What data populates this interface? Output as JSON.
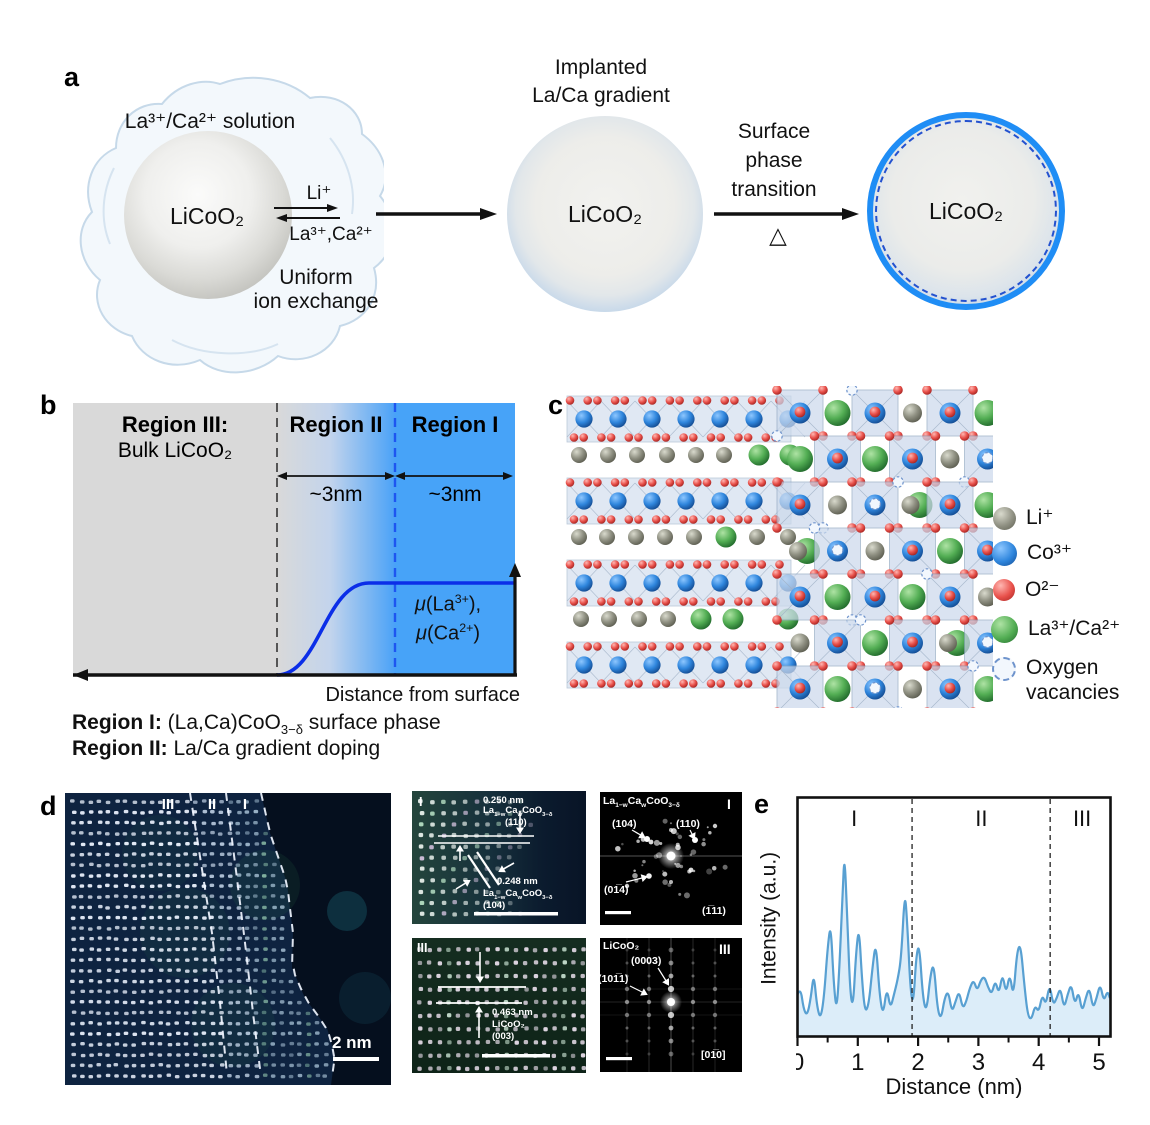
{
  "figure": {
    "panel_labels": {
      "a": "a",
      "b": "b",
      "c": "c",
      "d": "d",
      "e": "e"
    },
    "a": {
      "solution_label": "La³⁺/Ca²⁺ solution",
      "sphere1_label": "LiCoO₂",
      "li_out": "Li⁺",
      "laca_in": "La³⁺,Ca²⁺",
      "exchange_line1": "Uniform",
      "exchange_line2": "ion exchange",
      "implanted_line1": "Implanted",
      "implanted_line2": "La/Ca gradient",
      "sphere2_label": "LiCoO₂",
      "transition_line1": "Surface",
      "transition_line2": "phase",
      "transition_line3": "transition",
      "heat_symbol": "△",
      "sphere3_label": "LiCoO₂"
    },
    "b": {
      "region3_title": "Region III:",
      "region3_sub": "Bulk LiCoO₂",
      "region2_title": "Region II",
      "region1_title": "Region I",
      "scale2": "~3nm",
      "scale1": "~3nm",
      "mu1_parts": [
        [
          "i",
          "μ"
        ],
        [
          "t",
          "(La"
        ],
        [
          "sup",
          "3+"
        ],
        [
          "t",
          "),"
        ]
      ],
      "mu2_parts": [
        [
          "i",
          "μ"
        ],
        [
          "t",
          "(Ca"
        ],
        [
          "sup",
          "2+"
        ],
        [
          "t",
          ")"
        ]
      ],
      "x_axis_label": "Distance from surface",
      "caption1_bold": "Region I:",
      "caption1_parts": [
        [
          "t",
          " (La,Ca)CoO"
        ],
        [
          "sub",
          "3−δ"
        ],
        [
          "t",
          " surface phase"
        ]
      ],
      "caption2_bold": "Region II:",
      "caption2_rest": " La/Ca gradient doping"
    },
    "c": {
      "legend": [
        {
          "key": "li",
          "label": "Li⁺"
        },
        {
          "key": "co",
          "label": "Co³⁺"
        },
        {
          "key": "o",
          "label": "O²⁻"
        },
        {
          "key": "laca",
          "label": "La³⁺/Ca²⁺"
        },
        {
          "key": "vacancy",
          "label_line1": "Oxygen",
          "label_line2": "vacancies"
        }
      ],
      "atom_colors": {
        "li": {
          "light": "#d9dacd",
          "base": "#8f9082",
          "dark": "#5c5d50"
        },
        "co": {
          "light": "#8ec7ff",
          "base": "#2f86dd",
          "dark": "#134a90"
        },
        "o": {
          "light": "#ffb7b2",
          "base": "#e8504a",
          "dark": "#a32320"
        },
        "laca": {
          "light": "#aee3a4",
          "base": "#53ae54",
          "dark": "#20692b"
        },
        "vacancy": {
          "fill": "#f2f7fd",
          "stroke": "#6e93cc"
        },
        "poly": {
          "fill": "#ccd9ec",
          "stroke": "#8fa6c0"
        }
      }
    },
    "d": {
      "region_labels": [
        "III",
        "II",
        "I"
      ],
      "scale_bar": "2 nm",
      "inset1": {
        "label": "I",
        "d1": "0.250 nm",
        "formula_parts": [
          [
            "t",
            "La"
          ],
          [
            "sub",
            "1−w"
          ],
          [
            "t",
            "Ca"
          ],
          [
            "sub",
            "w"
          ],
          [
            "t",
            "CoO"
          ],
          [
            "sub",
            "3−δ"
          ]
        ],
        "plane1": "(110)",
        "d2": "0.248 nm",
        "plane2": "(104)"
      },
      "inset3": {
        "label": "III",
        "d1": "0.463 nm",
        "formula": "LiCoO₂",
        "plane": "(003)"
      },
      "fft1": {
        "formula_parts": [
          [
            "t",
            "La"
          ],
          [
            "sub",
            "1−w"
          ],
          [
            "t",
            "Ca"
          ],
          [
            "sub",
            "w"
          ],
          [
            "t",
            "CoO"
          ],
          [
            "sub",
            "3−δ"
          ]
        ],
        "label": "I",
        "s1": "(104)",
        "s2": "(110)",
        "s3": "(01̅4)",
        "zone": "(1̅11)"
      },
      "fft2": {
        "formula": "LiCoO₂",
        "label": "III",
        "s1": "(0003)",
        "s2": "(101̅1)",
        "zone": "[01̅0]"
      }
    }
  },
  "chart_data": {
    "type": "line",
    "title": "",
    "xlabel": "Distance (nm)",
    "ylabel": "Intensity (a.u.)",
    "xlim": [
      0,
      5.18
    ],
    "x_ticks": [
      0,
      1,
      2,
      3,
      4,
      5
    ],
    "minor_ticks": [
      0.5,
      1.5,
      2.5,
      3.5,
      4.5
    ],
    "grid": false,
    "dividers": [
      1.9,
      4.19
    ],
    "region_labels": [
      {
        "text": "I",
        "x": 0.94
      },
      {
        "text": "II",
        "x": 3.05
      },
      {
        "text": "III",
        "x": 4.72
      }
    ],
    "line_color": "#58a0d2",
    "fill_color": "#dcedf9",
    "points": [
      [
        0.0,
        0.22
      ],
      [
        0.05,
        0.26
      ],
      [
        0.1,
        0.14
      ],
      [
        0.16,
        0.1
      ],
      [
        0.22,
        0.2
      ],
      [
        0.27,
        0.34
      ],
      [
        0.32,
        0.16
      ],
      [
        0.38,
        0.08
      ],
      [
        0.44,
        0.2
      ],
      [
        0.5,
        0.48
      ],
      [
        0.55,
        0.62
      ],
      [
        0.6,
        0.28
      ],
      [
        0.65,
        0.12
      ],
      [
        0.7,
        0.4
      ],
      [
        0.75,
        0.8
      ],
      [
        0.78,
        1.0
      ],
      [
        0.82,
        0.7
      ],
      [
        0.87,
        0.24
      ],
      [
        0.92,
        0.14
      ],
      [
        0.97,
        0.45
      ],
      [
        1.02,
        0.6
      ],
      [
        1.07,
        0.3
      ],
      [
        1.12,
        0.12
      ],
      [
        1.18,
        0.16
      ],
      [
        1.24,
        0.36
      ],
      [
        1.3,
        0.52
      ],
      [
        1.36,
        0.22
      ],
      [
        1.42,
        0.1
      ],
      [
        1.48,
        0.26
      ],
      [
        1.54,
        0.14
      ],
      [
        1.6,
        0.22
      ],
      [
        1.66,
        0.3
      ],
      [
        1.72,
        0.42
      ],
      [
        1.78,
        0.8
      ],
      [
        1.82,
        0.62
      ],
      [
        1.87,
        0.25
      ],
      [
        1.92,
        0.16
      ],
      [
        1.97,
        0.44
      ],
      [
        2.02,
        0.5
      ],
      [
        2.08,
        0.2
      ],
      [
        2.14,
        0.12
      ],
      [
        2.2,
        0.32
      ],
      [
        2.26,
        0.4
      ],
      [
        2.32,
        0.14
      ],
      [
        2.38,
        0.08
      ],
      [
        2.44,
        0.2
      ],
      [
        2.5,
        0.24
      ],
      [
        2.56,
        0.12
      ],
      [
        2.62,
        0.18
      ],
      [
        2.68,
        0.24
      ],
      [
        2.74,
        0.14
      ],
      [
        2.8,
        0.18
      ],
      [
        2.86,
        0.26
      ],
      [
        2.92,
        0.3
      ],
      [
        2.98,
        0.24
      ],
      [
        3.04,
        0.3
      ],
      [
        3.1,
        0.32
      ],
      [
        3.16,
        0.26
      ],
      [
        3.22,
        0.22
      ],
      [
        3.28,
        0.3
      ],
      [
        3.34,
        0.22
      ],
      [
        3.4,
        0.34
      ],
      [
        3.46,
        0.22
      ],
      [
        3.52,
        0.34
      ],
      [
        3.58,
        0.2
      ],
      [
        3.64,
        0.46
      ],
      [
        3.7,
        0.5
      ],
      [
        3.76,
        0.28
      ],
      [
        3.82,
        0.1
      ],
      [
        3.88,
        0.08
      ],
      [
        3.94,
        0.16
      ],
      [
        4.0,
        0.12
      ],
      [
        4.06,
        0.22
      ],
      [
        4.12,
        0.16
      ],
      [
        4.18,
        0.28
      ],
      [
        4.24,
        0.16
      ],
      [
        4.3,
        0.2
      ],
      [
        4.36,
        0.26
      ],
      [
        4.42,
        0.14
      ],
      [
        4.48,
        0.22
      ],
      [
        4.54,
        0.28
      ],
      [
        4.6,
        0.16
      ],
      [
        4.66,
        0.24
      ],
      [
        4.72,
        0.12
      ],
      [
        4.78,
        0.2
      ],
      [
        4.84,
        0.26
      ],
      [
        4.9,
        0.14
      ],
      [
        4.96,
        0.2
      ],
      [
        5.02,
        0.28
      ],
      [
        5.08,
        0.18
      ],
      [
        5.14,
        0.24
      ],
      [
        5.18,
        0.2
      ]
    ]
  }
}
